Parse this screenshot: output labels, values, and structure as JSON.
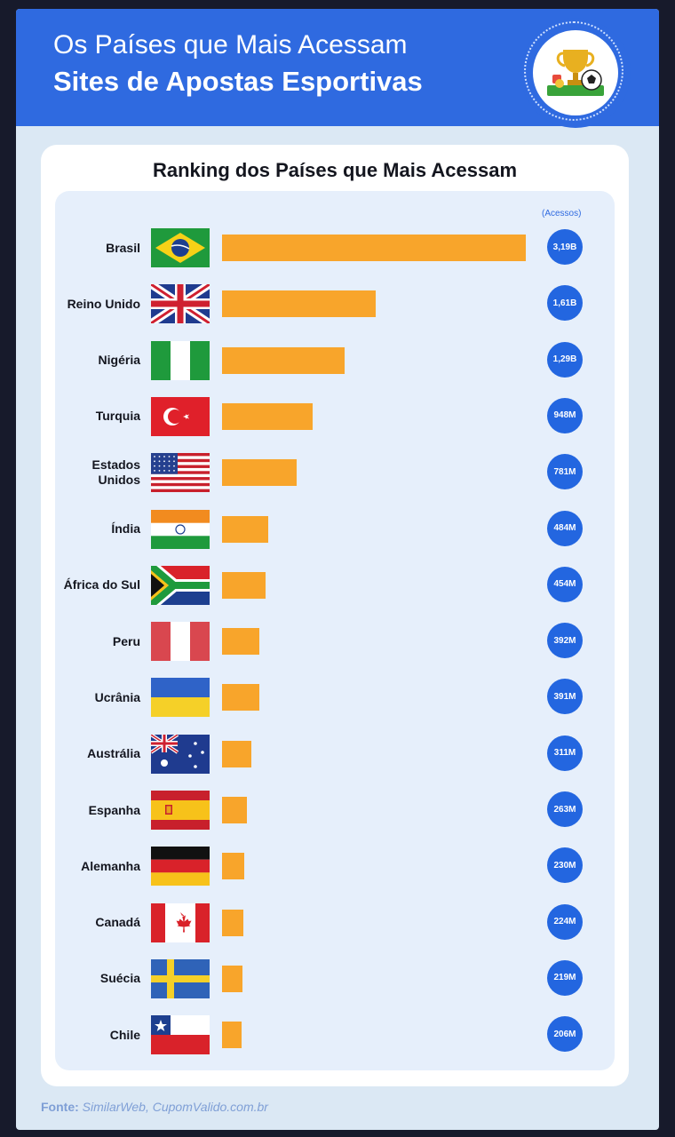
{
  "header": {
    "line1": "Os Países que Mais Acessam",
    "line2": "Sites de Apostas Esportivas"
  },
  "logo": {
    "icon": "trophy-soccer-ball-icon"
  },
  "card": {
    "title": "Ranking dos Países que Mais Acessam",
    "unit_label": "(Acessos)"
  },
  "source": {
    "label": "Fonte:",
    "text": "SimilarWeb, CupomValido.com.br"
  },
  "colors": {
    "header": "#2f6ae0",
    "bar": "#f8a52b",
    "badge": "#2366e0",
    "panel": "#e6effb"
  },
  "chart_data": {
    "type": "bar",
    "orientation": "horizontal",
    "title": "Ranking dos Países que Mais Acessam",
    "unit": "(Acessos)",
    "categories": [
      "Brasil",
      "Reino Unido",
      "Nigéria",
      "Turquia",
      "Estados Unidos",
      "Índia",
      "África do Sul",
      "Peru",
      "Ucrânia",
      "Austrália",
      "Espanha",
      "Alemanha",
      "Canadá",
      "Suécia",
      "Chile"
    ],
    "values": [
      3190000000,
      1610000000,
      1290000000,
      948000000,
      781000000,
      484000000,
      454000000,
      392000000,
      391000000,
      311000000,
      263000000,
      230000000,
      224000000,
      219000000,
      206000000
    ],
    "value_labels": [
      "3,19B",
      "1,61B",
      "1,29B",
      "948M",
      "781M",
      "484M",
      "454M",
      "392M",
      "391M",
      "311M",
      "263M",
      "230M",
      "224M",
      "219M",
      "206M"
    ],
    "flags": [
      "brazil-flag-icon",
      "united-kingdom-flag-icon",
      "nigeria-flag-icon",
      "turkey-flag-icon",
      "united-states-flag-icon",
      "india-flag-icon",
      "south-africa-flag-icon",
      "peru-flag-icon",
      "ukraine-flag-icon",
      "australia-flag-icon",
      "spain-flag-icon",
      "germany-flag-icon",
      "canada-flag-icon",
      "sweden-flag-icon",
      "chile-flag-icon"
    ]
  }
}
